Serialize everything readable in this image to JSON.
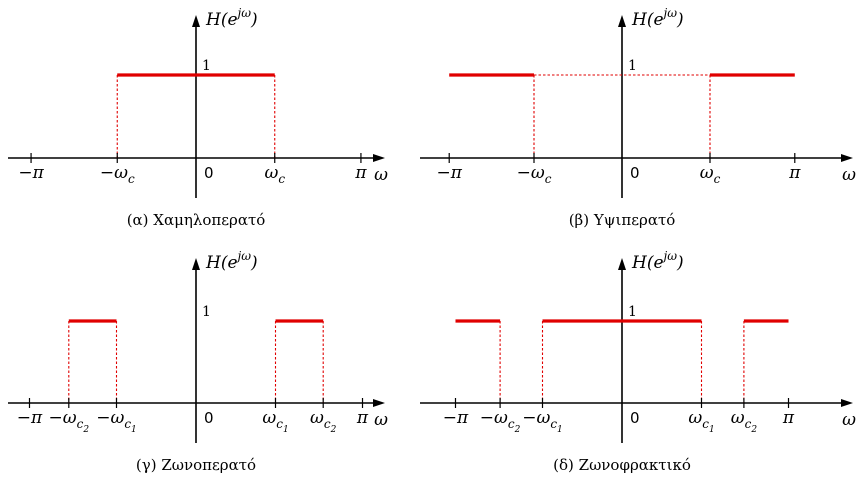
{
  "chart_data": [
    {
      "type": "diagram",
      "caption": "(α) Χαμηλοπερατό",
      "y_axis_label": "H(e^{jω})",
      "x_axis_label": "ω",
      "level_label": "1",
      "origin_label": "0",
      "ticks": [
        {
          "value": -3.1416,
          "label": "−π"
        },
        {
          "value": -1.5,
          "label": "−ω_c"
        },
        {
          "value": 1.5,
          "label": "ω_c"
        },
        {
          "value": 3.1416,
          "label": "π"
        }
      ],
      "passbands": [
        [
          -1.5,
          1.5
        ]
      ],
      "guide_lines": [
        [
          -1.5,
          1.5
        ]
      ]
    },
    {
      "type": "diagram",
      "caption": "(β) Υψιπερατό",
      "y_axis_label": "H(e^{jω})",
      "x_axis_label": "ω",
      "level_label": "1",
      "origin_label": "0",
      "ticks": [
        {
          "value": -3.1416,
          "label": "−π"
        },
        {
          "value": -1.6,
          "label": "−ω_c"
        },
        {
          "value": 1.6,
          "label": "ω_c"
        },
        {
          "value": 3.1416,
          "label": "π"
        }
      ],
      "passbands": [
        [
          -3.1416,
          -1.6
        ],
        [
          1.6,
          3.1416
        ]
      ],
      "guide_lines": [
        [
          -1.6,
          1.6
        ]
      ]
    },
    {
      "type": "diagram",
      "caption": "(γ) Ζωνοπερατό",
      "y_axis_label": "H(e^{jω})",
      "x_axis_label": "ω",
      "level_label": "1",
      "origin_label": "0",
      "ticks": [
        {
          "value": -3.1416,
          "label": "−π"
        },
        {
          "value": -2.4,
          "label": "−ω_c2"
        },
        {
          "value": -1.5,
          "label": "−ω_c1"
        },
        {
          "value": 1.5,
          "label": "ω_c1"
        },
        {
          "value": 2.4,
          "label": "ω_c2"
        },
        {
          "value": 3.1416,
          "label": "π"
        }
      ],
      "passbands": [
        [
          -2.4,
          -1.5
        ],
        [
          1.5,
          2.4
        ]
      ],
      "guide_lines": []
    },
    {
      "type": "diagram",
      "caption": "(δ) Ζωνοφρακτικό",
      "y_axis_label": "H(e^{jω})",
      "x_axis_label": "ω",
      "level_label": "1",
      "origin_label": "0",
      "ticks": [
        {
          "value": -3.1416,
          "label": "−π"
        },
        {
          "value": -2.3,
          "label": "−ω_c2"
        },
        {
          "value": -1.5,
          "label": "−ω_c1"
        },
        {
          "value": 1.5,
          "label": "ω_c1"
        },
        {
          "value": 2.3,
          "label": "ω_c2"
        },
        {
          "value": 3.1416,
          "label": "π"
        }
      ],
      "passbands": [
        [
          -3.1416,
          -2.3
        ],
        [
          -1.5,
          1.5
        ],
        [
          2.3,
          3.1416
        ]
      ],
      "guide_lines": []
    }
  ]
}
